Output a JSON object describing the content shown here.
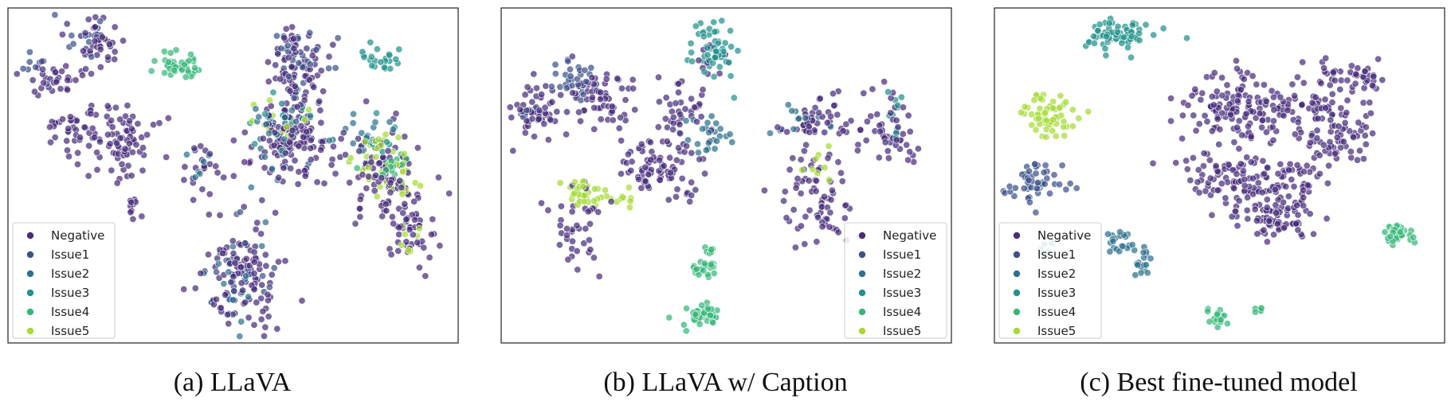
{
  "figure": {
    "legend_labels": [
      "Negative",
      "Issue1",
      "Issue2",
      "Issue3",
      "Issue4",
      "Issue5"
    ],
    "colors": {
      "Negative": "#472d7b",
      "Issue1": "#3b528b",
      "Issue2": "#2c728e",
      "Issue3": "#21918c",
      "Issue4": "#35b779",
      "Issue5": "#a5db36"
    }
  },
  "chart_data": [
    {
      "type": "scatter",
      "caption": "(a)  LLaVA",
      "xlabel": "",
      "ylabel": "",
      "grid": false,
      "legend_position": "lower-left",
      "series": [
        {
          "name": "Negative",
          "clusters": [
            {
              "x": 0.2,
              "y": 0.9,
              "rx": 0.04,
              "ry": 0.06,
              "n": 40
            },
            {
              "x": 0.1,
              "y": 0.78,
              "rx": 0.05,
              "ry": 0.05,
              "n": 35
            },
            {
              "x": 0.24,
              "y": 0.6,
              "rx": 0.08,
              "ry": 0.1,
              "n": 90
            },
            {
              "x": 0.13,
              "y": 0.63,
              "rx": 0.04,
              "ry": 0.04,
              "n": 25
            },
            {
              "x": 0.43,
              "y": 0.52,
              "rx": 0.04,
              "ry": 0.07,
              "n": 22
            },
            {
              "x": 0.28,
              "y": 0.4,
              "rx": 0.012,
              "ry": 0.03,
              "n": 10
            },
            {
              "x": 0.64,
              "y": 0.82,
              "rx": 0.05,
              "ry": 0.12,
              "n": 80
            },
            {
              "x": 0.62,
              "y": 0.6,
              "rx": 0.08,
              "ry": 0.1,
              "n": 120
            },
            {
              "x": 0.82,
              "y": 0.52,
              "rx": 0.07,
              "ry": 0.12,
              "n": 90
            },
            {
              "x": 0.9,
              "y": 0.35,
              "rx": 0.05,
              "ry": 0.1,
              "n": 50
            },
            {
              "x": 0.52,
              "y": 0.2,
              "rx": 0.07,
              "ry": 0.14,
              "n": 110
            }
          ]
        },
        {
          "name": "Issue1",
          "clusters": [
            {
              "x": 0.18,
              "y": 0.9,
              "rx": 0.04,
              "ry": 0.05,
              "n": 14
            },
            {
              "x": 0.64,
              "y": 0.83,
              "rx": 0.05,
              "ry": 0.11,
              "n": 30
            },
            {
              "x": 0.06,
              "y": 0.82,
              "rx": 0.03,
              "ry": 0.04,
              "n": 8
            },
            {
              "x": 0.53,
              "y": 0.2,
              "rx": 0.06,
              "ry": 0.12,
              "n": 18
            }
          ]
        },
        {
          "name": "Issue2",
          "clusters": [
            {
              "x": 0.62,
              "y": 0.62,
              "rx": 0.08,
              "ry": 0.1,
              "n": 28
            },
            {
              "x": 0.52,
              "y": 0.2,
              "rx": 0.06,
              "ry": 0.13,
              "n": 22
            },
            {
              "x": 0.42,
              "y": 0.55,
              "rx": 0.04,
              "ry": 0.05,
              "n": 6
            },
            {
              "x": 0.8,
              "y": 0.62,
              "rx": 0.06,
              "ry": 0.08,
              "n": 14
            }
          ]
        },
        {
          "name": "Issue3",
          "clusters": [
            {
              "x": 0.83,
              "y": 0.85,
              "rx": 0.035,
              "ry": 0.03,
              "n": 22
            },
            {
              "x": 0.62,
              "y": 0.68,
              "rx": 0.07,
              "ry": 0.09,
              "n": 16
            },
            {
              "x": 0.82,
              "y": 0.62,
              "rx": 0.05,
              "ry": 0.06,
              "n": 12
            }
          ]
        },
        {
          "name": "Issue4",
          "clusters": [
            {
              "x": 0.38,
              "y": 0.83,
              "rx": 0.05,
              "ry": 0.035,
              "n": 40
            },
            {
              "x": 0.83,
              "y": 0.53,
              "rx": 0.06,
              "ry": 0.07,
              "n": 18
            }
          ]
        },
        {
          "name": "Issue5",
          "clusters": [
            {
              "x": 0.84,
              "y": 0.52,
              "rx": 0.06,
              "ry": 0.08,
              "n": 45
            },
            {
              "x": 0.6,
              "y": 0.66,
              "rx": 0.06,
              "ry": 0.06,
              "n": 12
            },
            {
              "x": 0.89,
              "y": 0.34,
              "rx": 0.04,
              "ry": 0.06,
              "n": 8
            }
          ]
        }
      ]
    },
    {
      "type": "scatter",
      "caption": "(b)  LLaVA w/ Caption",
      "xlabel": "",
      "ylabel": "",
      "grid": false,
      "legend_position": "lower-right",
      "series": [
        {
          "name": "Negative",
          "clusters": [
            {
              "x": 0.08,
              "y": 0.7,
              "rx": 0.05,
              "ry": 0.07,
              "n": 50
            },
            {
              "x": 0.22,
              "y": 0.72,
              "rx": 0.07,
              "ry": 0.08,
              "n": 60
            },
            {
              "x": 0.34,
              "y": 0.52,
              "rx": 0.08,
              "ry": 0.08,
              "n": 80
            },
            {
              "x": 0.4,
              "y": 0.7,
              "rx": 0.05,
              "ry": 0.08,
              "n": 40
            },
            {
              "x": 0.17,
              "y": 0.35,
              "rx": 0.05,
              "ry": 0.12,
              "n": 40
            },
            {
              "x": 0.71,
              "y": 0.66,
              "rx": 0.07,
              "ry": 0.06,
              "n": 50
            },
            {
              "x": 0.7,
              "y": 0.42,
              "rx": 0.06,
              "ry": 0.12,
              "n": 70
            },
            {
              "x": 0.86,
              "y": 0.63,
              "rx": 0.06,
              "ry": 0.1,
              "n": 50
            },
            {
              "x": 0.47,
              "y": 0.85,
              "rx": 0.03,
              "ry": 0.04,
              "n": 12
            }
          ]
        },
        {
          "name": "Issue1",
          "clusters": [
            {
              "x": 0.16,
              "y": 0.78,
              "rx": 0.05,
              "ry": 0.05,
              "n": 35
            },
            {
              "x": 0.06,
              "y": 0.68,
              "rx": 0.03,
              "ry": 0.03,
              "n": 8
            }
          ]
        },
        {
          "name": "Issue2",
          "clusters": [
            {
              "x": 0.46,
              "y": 0.62,
              "rx": 0.05,
              "ry": 0.05,
              "n": 25
            },
            {
              "x": 0.66,
              "y": 0.66,
              "rx": 0.05,
              "ry": 0.05,
              "n": 10
            }
          ]
        },
        {
          "name": "Issue3",
          "clusters": [
            {
              "x": 0.47,
              "y": 0.88,
              "rx": 0.04,
              "ry": 0.07,
              "n": 55
            },
            {
              "x": 0.88,
              "y": 0.68,
              "rx": 0.04,
              "ry": 0.05,
              "n": 10
            }
          ]
        },
        {
          "name": "Issue4",
          "clusters": [
            {
              "x": 0.45,
              "y": 0.22,
              "rx": 0.03,
              "ry": 0.02,
              "n": 25
            },
            {
              "x": 0.45,
              "y": 0.08,
              "rx": 0.035,
              "ry": 0.025,
              "n": 45
            },
            {
              "x": 0.47,
              "y": 0.28,
              "rx": 0.02,
              "ry": 0.015,
              "n": 6
            }
          ]
        },
        {
          "name": "Issue5",
          "clusters": [
            {
              "x": 0.18,
              "y": 0.45,
              "rx": 0.04,
              "ry": 0.04,
              "n": 40
            },
            {
              "x": 0.27,
              "y": 0.42,
              "rx": 0.025,
              "ry": 0.02,
              "n": 10
            },
            {
              "x": 0.7,
              "y": 0.52,
              "rx": 0.03,
              "ry": 0.05,
              "n": 8
            }
          ]
        }
      ]
    },
    {
      "type": "scatter",
      "caption": "(c)  Best fine-tuned model",
      "xlabel": "",
      "ylabel": "",
      "grid": false,
      "legend_position": "lower-left",
      "series": [
        {
          "name": "Negative",
          "clusters": [
            {
              "x": 0.55,
              "y": 0.7,
              "rx": 0.12,
              "ry": 0.09,
              "n": 150
            },
            {
              "x": 0.74,
              "y": 0.65,
              "rx": 0.08,
              "ry": 0.1,
              "n": 110
            },
            {
              "x": 0.52,
              "y": 0.5,
              "rx": 0.1,
              "ry": 0.06,
              "n": 80
            },
            {
              "x": 0.62,
              "y": 0.38,
              "rx": 0.08,
              "ry": 0.07,
              "n": 90
            },
            {
              "x": 0.81,
              "y": 0.8,
              "rx": 0.05,
              "ry": 0.04,
              "n": 30
            },
            {
              "x": 0.74,
              "y": 0.82,
              "rx": 0.015,
              "ry": 0.02,
              "n": 6
            },
            {
              "x": 0.66,
              "y": 0.48,
              "rx": 0.06,
              "ry": 0.05,
              "n": 40
            }
          ]
        },
        {
          "name": "Issue1",
          "clusters": [
            {
              "x": 0.09,
              "y": 0.48,
              "rx": 0.055,
              "ry": 0.045,
              "n": 55
            }
          ]
        },
        {
          "name": "Issue2",
          "clusters": [
            {
              "x": 0.28,
              "y": 0.3,
              "rx": 0.03,
              "ry": 0.03,
              "n": 20
            },
            {
              "x": 0.33,
              "y": 0.24,
              "rx": 0.02,
              "ry": 0.05,
              "n": 18
            }
          ]
        },
        {
          "name": "Issue3",
          "clusters": [
            {
              "x": 0.28,
              "y": 0.92,
              "rx": 0.06,
              "ry": 0.04,
              "n": 70
            },
            {
              "x": 0.11,
              "y": 0.29,
              "rx": 0.015,
              "ry": 0.02,
              "n": 5
            }
          ]
        },
        {
          "name": "Issue4",
          "clusters": [
            {
              "x": 0.9,
              "y": 0.33,
              "rx": 0.03,
              "ry": 0.03,
              "n": 40
            },
            {
              "x": 0.5,
              "y": 0.07,
              "rx": 0.018,
              "ry": 0.025,
              "n": 18
            },
            {
              "x": 0.59,
              "y": 0.1,
              "rx": 0.01,
              "ry": 0.01,
              "n": 5
            }
          ]
        },
        {
          "name": "Issue5",
          "clusters": [
            {
              "x": 0.12,
              "y": 0.68,
              "rx": 0.045,
              "ry": 0.05,
              "n": 55
            },
            {
              "x": 0.09,
              "y": 0.74,
              "rx": 0.015,
              "ry": 0.01,
              "n": 6
            }
          ]
        }
      ]
    }
  ]
}
